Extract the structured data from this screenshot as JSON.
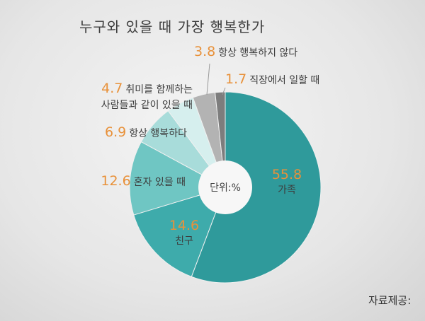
{
  "chart_data": {
    "type": "pie",
    "title": "누구와 있을 때 가장 행복한가",
    "center_label": "단위:%",
    "categories": [
      "가족",
      "친구",
      "혼자 있을 때",
      "항상 행복하다",
      "취미를 함께하는\n사람들과 같이 있을 때",
      "항상 행복하지 않다",
      "직장에서 일할 때"
    ],
    "values": [
      55.8,
      14.6,
      12.6,
      6.9,
      4.7,
      3.8,
      1.7
    ],
    "colors": [
      "#2f9a9b",
      "#3eabab",
      "#6fc6c3",
      "#a8dcda",
      "#d6efee",
      "#b3b3b3",
      "#7d7d7d"
    ],
    "value_color": "#e8913a",
    "source": "자료제공:"
  }
}
